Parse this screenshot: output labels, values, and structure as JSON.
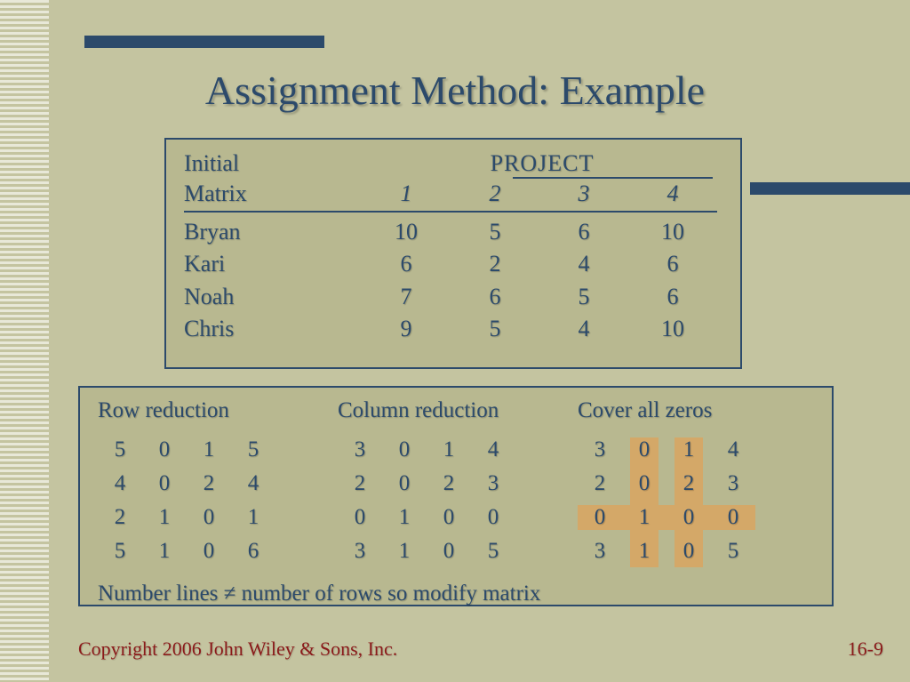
{
  "colors": {
    "background": "#c4c4a0",
    "box_background": "#b8b890",
    "border": "#2c4a6b",
    "text": "#2c4a6b",
    "highlight": "#d4a868",
    "footer_text": "#8b1a1a",
    "stripe_light": "#e8e8d8"
  },
  "title": "Assignment Method: Example",
  "initial_matrix": {
    "label_initial": "Initial",
    "label_matrix": "Matrix",
    "project_label": "PROJECT",
    "columns": [
      "1",
      "2",
      "3",
      "4"
    ],
    "rows": [
      {
        "name": "Bryan",
        "values": [
          "10",
          "5",
          "6",
          "10"
        ]
      },
      {
        "name": "Kari",
        "values": [
          "6",
          "2",
          "4",
          "6"
        ]
      },
      {
        "name": "Noah",
        "values": [
          "7",
          "6",
          "5",
          "6"
        ]
      },
      {
        "name": "Chris",
        "values": [
          "9",
          "5",
          "4",
          "10"
        ]
      }
    ]
  },
  "reductions": {
    "row_reduction": {
      "label": "Row reduction",
      "values": [
        [
          "5",
          "0",
          "1",
          "5"
        ],
        [
          "4",
          "0",
          "2",
          "4"
        ],
        [
          "2",
          "1",
          "0",
          "1"
        ],
        [
          "5",
          "1",
          "0",
          "6"
        ]
      ]
    },
    "column_reduction": {
      "label": "Column reduction",
      "values": [
        [
          "3",
          "0",
          "1",
          "4"
        ],
        [
          "2",
          "0",
          "2",
          "3"
        ],
        [
          "0",
          "1",
          "0",
          "0"
        ],
        [
          "3",
          "1",
          "0",
          "5"
        ]
      ]
    },
    "cover_zeros": {
      "label": "Cover all zeros",
      "values": [
        [
          "3",
          "0",
          "1",
          "4"
        ],
        [
          "2",
          "0",
          "2",
          "3"
        ],
        [
          "0",
          "1",
          "0",
          "0"
        ],
        [
          "3",
          "1",
          "0",
          "5"
        ]
      ],
      "cover_lines": {
        "vertical_cols": [
          1,
          2
        ],
        "horizontal_rows": [
          2
        ]
      }
    }
  },
  "footer_note": "Number lines ≠ number of rows so modify matrix",
  "copyright": "Copyright 2006 John Wiley & Sons, Inc.",
  "page_number": "16-9"
}
